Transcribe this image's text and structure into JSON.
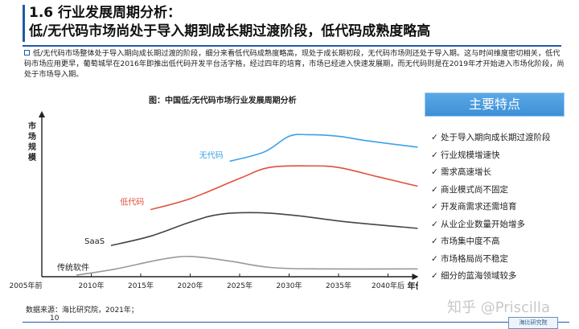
{
  "header": {
    "title_line1": "1.6 行业发展周期分析：",
    "title_line2": "低/无代码市场尚处于导入期到成长期过渡阶段，低代码成熟度略高"
  },
  "intro": {
    "text": "低/无代码市场整体处于导入期向成长期过渡的阶段，细分来看低代码成熟度略高，现处于成长期初段，无代码市场则还处于导入期。这与时间维度密切相关，低代码市场应用更早，葡萄城早在2016年即推出低代码开发平台活字格，经过四年的培育，市场已经进入快速发展期，而无代码则是在2019年才开始进入市场化阶段，尚处于市场导入期。"
  },
  "chart_data": {
    "type": "line",
    "title": "图：中国低/无代码市场行业发展周期分析",
    "ylabel": "市场规模",
    "xlabel": "年份",
    "categories": [
      "2005年前",
      "2010年",
      "2015年",
      "2020年",
      "2025年",
      "2030年",
      "2035年",
      "2040年后"
    ],
    "ylim": [
      0,
      100
    ],
    "series": [
      {
        "name": "无代码",
        "color": "#3aa0e6",
        "x_start": 3.8,
        "x_end": 7.6,
        "values": [
          [
            3.8,
            74
          ],
          [
            4.5,
            80
          ],
          [
            5.0,
            90
          ],
          [
            5.4,
            91
          ],
          [
            6.0,
            90
          ],
          [
            6.6,
            87
          ],
          [
            7.6,
            83
          ]
        ]
      },
      {
        "name": "低代码",
        "color": "#e0503a",
        "x_start": 2.2,
        "x_end": 7.6,
        "values": [
          [
            2.2,
            43
          ],
          [
            3.0,
            50
          ],
          [
            4.0,
            63
          ],
          [
            4.6,
            70
          ],
          [
            5.4,
            71
          ],
          [
            6.0,
            70
          ],
          [
            6.8,
            64
          ],
          [
            7.6,
            58
          ]
        ]
      },
      {
        "name": "SaaS",
        "color": "#444444",
        "x_start": 1.4,
        "x_end": 7.6,
        "values": [
          [
            1.4,
            20
          ],
          [
            2.2,
            26
          ],
          [
            3.0,
            35
          ],
          [
            3.6,
            40
          ],
          [
            4.4,
            41
          ],
          [
            5.2,
            39
          ],
          [
            6.2,
            35
          ],
          [
            7.6,
            31
          ]
        ]
      },
      {
        "name": "传统软件",
        "color": "#999999",
        "x_start": 0.7,
        "x_end": 7.6,
        "values": [
          [
            0.7,
            1
          ],
          [
            1.5,
            5
          ],
          [
            2.4,
            11
          ],
          [
            3.0,
            13
          ],
          [
            3.8,
            10
          ],
          [
            4.6,
            6
          ],
          [
            5.6,
            5
          ],
          [
            7.6,
            5
          ]
        ]
      }
    ]
  },
  "features": {
    "title": "主要特点",
    "items": [
      "处于导入期向成长期过渡阶段",
      "行业规模增速快",
      "需求高速增长",
      "商业模式尚不固定",
      "开发商需求还需培育",
      "从业企业数量开始增多",
      "市场集中度不高",
      "市场格局尚不稳定",
      "细分的蓝海领域较多"
    ]
  },
  "footer": {
    "source": "数据来源：海比研究院，2021年；",
    "page": "10",
    "watermark": "知乎 @Priscilla",
    "logo_text": "海比研究院"
  },
  "icons": {
    "check": "check-icon",
    "bullet": "square-bullet-icon"
  }
}
